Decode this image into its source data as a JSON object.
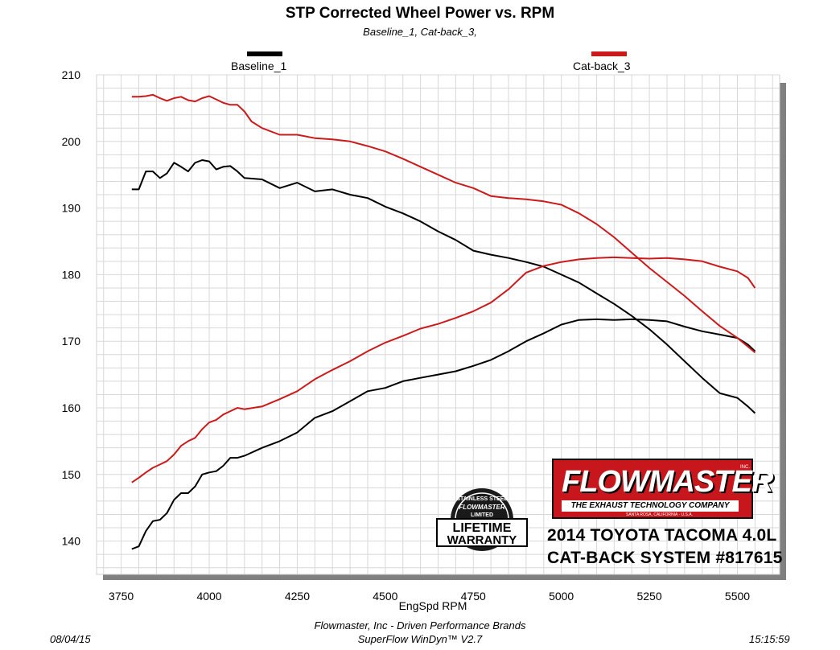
{
  "chart_data": {
    "type": "line",
    "title": "STP Corrected Wheel Power vs. RPM",
    "subtitle": "Baseline_1, Cat-back_3,",
    "xlabel": "EngSpd  RPM",
    "ylabel": "",
    "xlim": [
      3680,
      5620
    ],
    "ylim": [
      135,
      210
    ],
    "xticks": [
      3750,
      4000,
      4250,
      4500,
      4750,
      5000,
      5250,
      5500
    ],
    "yticks": [
      140,
      150,
      160,
      170,
      180,
      190,
      200,
      210
    ],
    "grid": true,
    "legend_position": "top",
    "series": [
      {
        "name": "Baseline_1",
        "color": "#000000",
        "kind": "power",
        "x": [
          3780,
          3800,
          3820,
          3840,
          3860,
          3880,
          3900,
          3920,
          3940,
          3960,
          3980,
          4000,
          4020,
          4040,
          4060,
          4080,
          4100,
          4150,
          4200,
          4250,
          4300,
          4350,
          4400,
          4450,
          4500,
          4550,
          4600,
          4650,
          4700,
          4750,
          4800,
          4850,
          4900,
          4950,
          5000,
          5050,
          5100,
          5150,
          5200,
          5250,
          5300,
          5350,
          5400,
          5450,
          5500,
          5530,
          5550
        ],
        "values": [
          192.8,
          192.8,
          195.5,
          195.5,
          194.5,
          195.2,
          196.8,
          196.2,
          195.5,
          196.8,
          197.2,
          197.0,
          195.8,
          196.2,
          196.3,
          195.5,
          194.5,
          194.3,
          193.0,
          193.8,
          192.5,
          192.8,
          192.0,
          191.5,
          190.2,
          189.2,
          188.0,
          186.5,
          185.2,
          183.6,
          183.0,
          182.5,
          181.9,
          181.2,
          180.0,
          178.8,
          177.2,
          175.6,
          173.8,
          171.8,
          169.5,
          167.0,
          164.5,
          162.2,
          161.5,
          160.2,
          159.2
        ]
      },
      {
        "name": "Baseline_1",
        "color": "#000000",
        "kind": "torque",
        "x": [
          3780,
          3800,
          3820,
          3840,
          3860,
          3880,
          3900,
          3920,
          3940,
          3960,
          3980,
          4000,
          4020,
          4040,
          4060,
          4080,
          4100,
          4150,
          4200,
          4250,
          4300,
          4350,
          4400,
          4450,
          4500,
          4550,
          4600,
          4650,
          4700,
          4750,
          4800,
          4850,
          4900,
          4950,
          5000,
          5050,
          5100,
          5150,
          5200,
          5250,
          5300,
          5350,
          5400,
          5450,
          5500,
          5530,
          5550
        ],
        "values": [
          138.8,
          139.2,
          141.5,
          143.0,
          143.2,
          144.2,
          146.2,
          147.2,
          147.2,
          148.2,
          150.0,
          150.3,
          150.5,
          151.3,
          152.5,
          152.5,
          152.8,
          154.0,
          155.0,
          156.3,
          158.5,
          159.5,
          161.0,
          162.5,
          163.0,
          164.0,
          164.5,
          165.0,
          165.5,
          166.3,
          167.2,
          168.5,
          170.0,
          171.2,
          172.5,
          173.2,
          173.3,
          173.2,
          173.3,
          173.2,
          173.0,
          172.2,
          171.5,
          171.0,
          170.5,
          169.5,
          168.5
        ]
      },
      {
        "name": "Cat-back_3",
        "color": "#cc1a1a",
        "kind": "power",
        "x": [
          3780,
          3800,
          3820,
          3840,
          3860,
          3880,
          3900,
          3920,
          3940,
          3960,
          3980,
          4000,
          4020,
          4040,
          4060,
          4080,
          4100,
          4120,
          4150,
          4200,
          4250,
          4300,
          4350,
          4400,
          4450,
          4500,
          4550,
          4600,
          4650,
          4700,
          4750,
          4800,
          4850,
          4900,
          4950,
          5000,
          5050,
          5100,
          5150,
          5200,
          5250,
          5300,
          5350,
          5400,
          5450,
          5500,
          5530,
          5550
        ],
        "values": [
          206.7,
          206.7,
          206.8,
          207.0,
          206.5,
          206.1,
          206.5,
          206.7,
          206.2,
          206.0,
          206.5,
          206.8,
          206.3,
          205.8,
          205.5,
          205.5,
          204.5,
          203.0,
          202.0,
          201.0,
          201.0,
          200.5,
          200.3,
          200.0,
          199.3,
          198.5,
          197.4,
          196.2,
          195.0,
          193.8,
          193.0,
          191.8,
          191.5,
          191.3,
          191.0,
          190.5,
          189.2,
          187.6,
          185.6,
          183.3,
          181.0,
          178.9,
          176.8,
          174.5,
          172.3,
          170.5,
          169.2,
          168.3
        ]
      },
      {
        "name": "Cat-back_3",
        "color": "#cc1a1a",
        "kind": "torque",
        "x": [
          3780,
          3800,
          3820,
          3840,
          3860,
          3880,
          3900,
          3920,
          3940,
          3960,
          3980,
          4000,
          4020,
          4040,
          4060,
          4080,
          4100,
          4150,
          4200,
          4250,
          4300,
          4350,
          4400,
          4450,
          4500,
          4550,
          4600,
          4650,
          4700,
          4750,
          4800,
          4850,
          4900,
          4950,
          5000,
          5050,
          5100,
          5150,
          5200,
          5250,
          5300,
          5350,
          5400,
          5450,
          5500,
          5530,
          5550
        ],
        "values": [
          148.8,
          149.5,
          150.3,
          151.0,
          151.5,
          152.0,
          153.0,
          154.3,
          155.0,
          155.5,
          156.8,
          157.8,
          158.2,
          159.0,
          159.5,
          160.0,
          159.8,
          160.2,
          161.3,
          162.5,
          164.3,
          165.7,
          167.0,
          168.5,
          169.8,
          170.8,
          171.9,
          172.6,
          173.5,
          174.5,
          175.8,
          177.8,
          180.3,
          181.3,
          181.9,
          182.3,
          182.5,
          182.6,
          182.5,
          182.4,
          182.5,
          182.3,
          182.0,
          181.2,
          180.5,
          179.5,
          178.0
        ]
      }
    ]
  },
  "legend": {
    "items": [
      {
        "label": "Baseline_1",
        "color": "#000000"
      },
      {
        "label": "Cat-back_3",
        "color": "#cc1a1a"
      }
    ]
  },
  "brand": {
    "logo": "FLOWMASTER",
    "logo_mark": "INC.",
    "tagline": "THE EXHAUST TECHNOLOGY COMPANY",
    "location": "SANTA ROSA, CALIFORNIA · U.S.A.",
    "caption_line1": "2014 TOYOTA TACOMA 4.0L",
    "caption_line2": "CAT-BACK SYSTEM #817615"
  },
  "warranty_badge": {
    "line1": "STAINLESS STEEL",
    "line2": "FLOWMASTER",
    "line3": "LIMITED",
    "line4": "LIFETIME",
    "line5": "WARRANTY"
  },
  "footer": {
    "date": "08/04/15",
    "company": "Flowmaster, Inc - Driven Performance Brands",
    "software": "SuperFlow WinDyn™ V2.7",
    "time": "15:15:59"
  }
}
